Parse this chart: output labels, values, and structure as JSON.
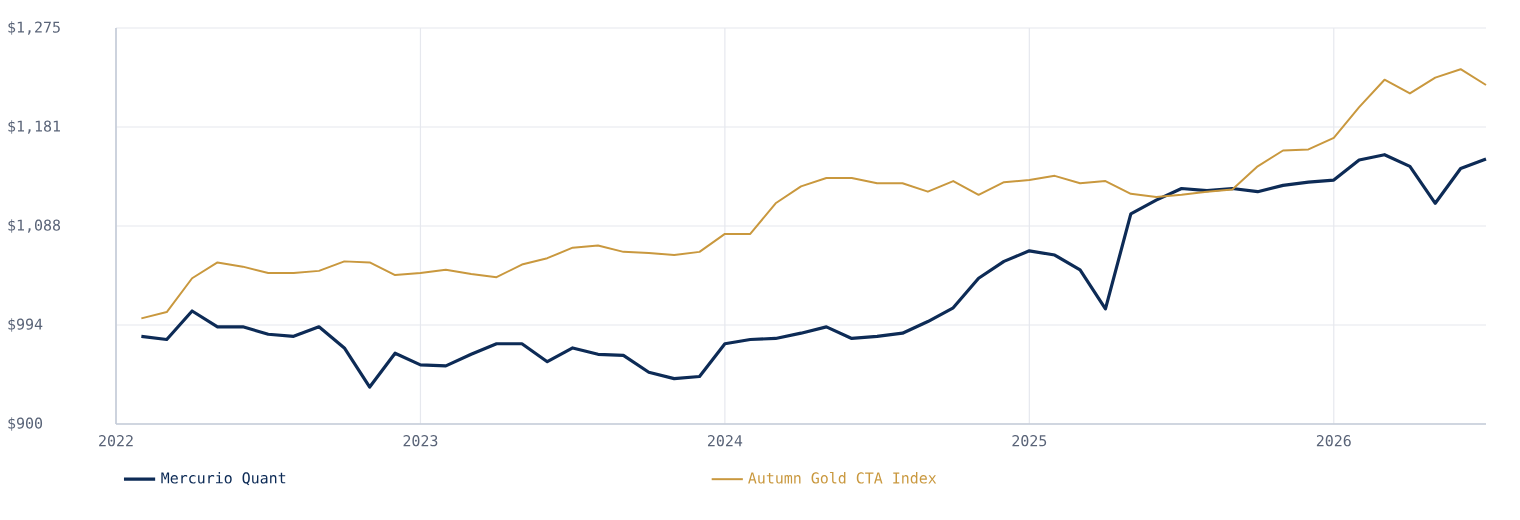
{
  "chart_data": {
    "type": "line",
    "x": [
      "2022-02",
      "2022-03",
      "2022-04",
      "2022-05",
      "2022-06",
      "2022-07",
      "2022-08",
      "2022-09",
      "2022-10",
      "2022-11",
      "2022-12",
      "2023-01",
      "2023-02",
      "2023-03",
      "2023-04",
      "2023-05",
      "2023-06",
      "2023-07",
      "2023-08",
      "2023-09",
      "2023-10",
      "2023-11",
      "2023-12",
      "2024-01",
      "2024-02",
      "2024-03",
      "2024-04",
      "2024-05",
      "2024-06",
      "2024-07",
      "2024-08",
      "2024-09",
      "2024-10",
      "2024-11",
      "2024-12",
      "2025-01",
      "2025-02",
      "2025-03",
      "2025-04",
      "2025-05",
      "2025-06",
      "2025-07",
      "2025-08",
      "2025-09",
      "2025-10",
      "2025-11",
      "2025-12",
      "2026-01",
      "2026-02",
      "2026-03",
      "2026-04",
      "2026-05",
      "2026-06",
      "2026-07"
    ],
    "series": [
      {
        "name": "Mercurio Quant",
        "color": "#0d2b56",
        "values": [
          983,
          980,
          1007,
          992,
          992,
          985,
          983,
          992,
          972,
          935,
          967,
          956,
          955,
          966,
          976,
          976,
          959,
          972,
          966,
          965,
          949,
          943,
          945,
          976,
          980,
          981,
          986,
          992,
          981,
          983,
          986,
          997,
          1010,
          1038,
          1054,
          1064,
          1060,
          1046,
          1009,
          1099,
          1112,
          1123,
          1121,
          1123,
          1120,
          1126,
          1129,
          1131,
          1150,
          1155,
          1144,
          1109,
          1142,
          1151
        ]
      },
      {
        "name": "Autumn Gold CTA Index",
        "color": "#c9983e",
        "values": [
          1000,
          1006,
          1038,
          1053,
          1049,
          1043,
          1043,
          1045,
          1054,
          1053,
          1041,
          1043,
          1046,
          1042,
          1039,
          1051,
          1057,
          1067,
          1069,
          1063,
          1062,
          1060,
          1063,
          1080,
          1080,
          1109,
          1125,
          1133,
          1133,
          1128,
          1128,
          1120,
          1130,
          1117,
          1129,
          1131,
          1135,
          1128,
          1130,
          1118,
          1115,
          1117,
          1120,
          1122,
          1144,
          1159,
          1160,
          1171,
          1200,
          1226,
          1213,
          1228,
          1236,
          1221
        ]
      }
    ],
    "xlim": [
      "2022-01",
      "2026-07"
    ],
    "xticks": [
      "2022",
      "2023",
      "2024",
      "2025",
      "2026"
    ],
    "ylim": [
      900,
      1275
    ],
    "yticks": [
      {
        "value": 900,
        "label": "$900"
      },
      {
        "value": 993.75,
        "label": "$994"
      },
      {
        "value": 1087.5,
        "label": "$1,088"
      },
      {
        "value": 1181.25,
        "label": "$1,181"
      },
      {
        "value": 1275,
        "label": "$1,275"
      }
    ],
    "grid": true,
    "legend": "bottom",
    "marker": "none",
    "line_style": "solid"
  }
}
